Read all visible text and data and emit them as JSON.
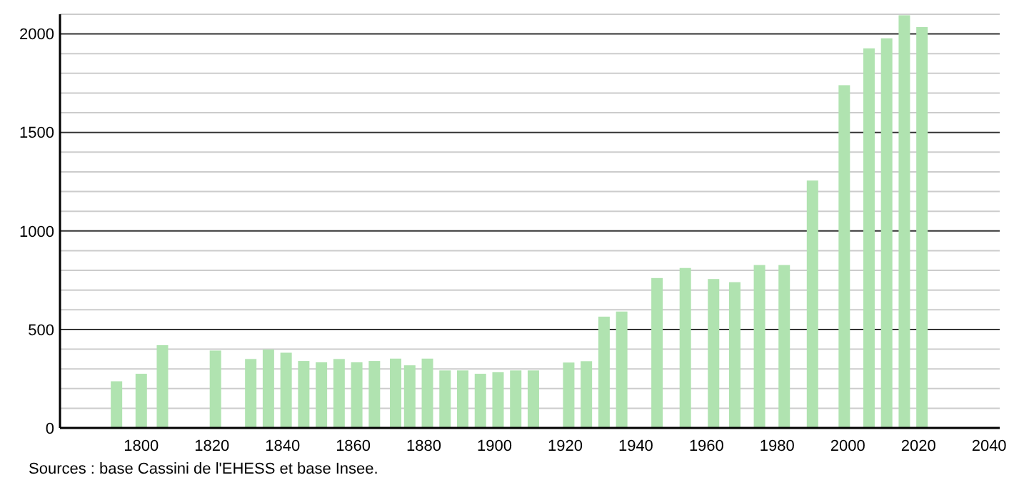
{
  "chart_data": {
    "type": "bar",
    "x": [
      1793,
      1800,
      1806,
      1821,
      1831,
      1836,
      1841,
      1846,
      1851,
      1856,
      1861,
      1866,
      1872,
      1876,
      1881,
      1886,
      1891,
      1896,
      1901,
      1906,
      1911,
      1921,
      1926,
      1931,
      1936,
      1946,
      1954,
      1962,
      1968,
      1975,
      1982,
      1990,
      1999,
      2006,
      2011,
      2016,
      2021
    ],
    "values": [
      237,
      275,
      420,
      393,
      350,
      398,
      382,
      340,
      333,
      350,
      333,
      340,
      352,
      318,
      352,
      292,
      292,
      275,
      283,
      292,
      292,
      332,
      339,
      565,
      591,
      761,
      812,
      756,
      740,
      827,
      827,
      1256,
      1740,
      1927,
      1978,
      2095,
      2035
    ],
    "color": "#b0e3b0",
    "xlim": [
      1777,
      2043
    ],
    "xticks": [
      1800,
      1820,
      1840,
      1860,
      1880,
      1900,
      1920,
      1940,
      1960,
      1980,
      2000,
      2020,
      2040
    ],
    "ylim": [
      0,
      2100
    ],
    "yticks": [
      0,
      {
        "value": 100,
        "label": null
      },
      {
        "value": 200,
        "label": null
      },
      {
        "value": 300,
        "label": null
      },
      {
        "value": 400,
        "label": null
      },
      500,
      {
        "value": 600,
        "label": null
      },
      {
        "value": 700,
        "label": null
      },
      {
        "value": 800,
        "label": null
      },
      {
        "value": 900,
        "label": null
      },
      1000,
      {
        "value": 1100,
        "label": null
      },
      {
        "value": 1200,
        "label": null
      },
      {
        "value": 1300,
        "label": null
      },
      {
        "value": 1400,
        "label": null
      },
      1500,
      {
        "value": 1600,
        "label": null
      },
      {
        "value": 1700,
        "label": null
      },
      {
        "value": 1800,
        "label": null
      },
      {
        "value": 1900,
        "label": null
      },
      2000,
      {
        "value": 2100,
        "label": null
      }
    ],
    "grid": "y",
    "annotations": [
      "Sources : base Cassini de l'EHESS et base Insee."
    ]
  }
}
